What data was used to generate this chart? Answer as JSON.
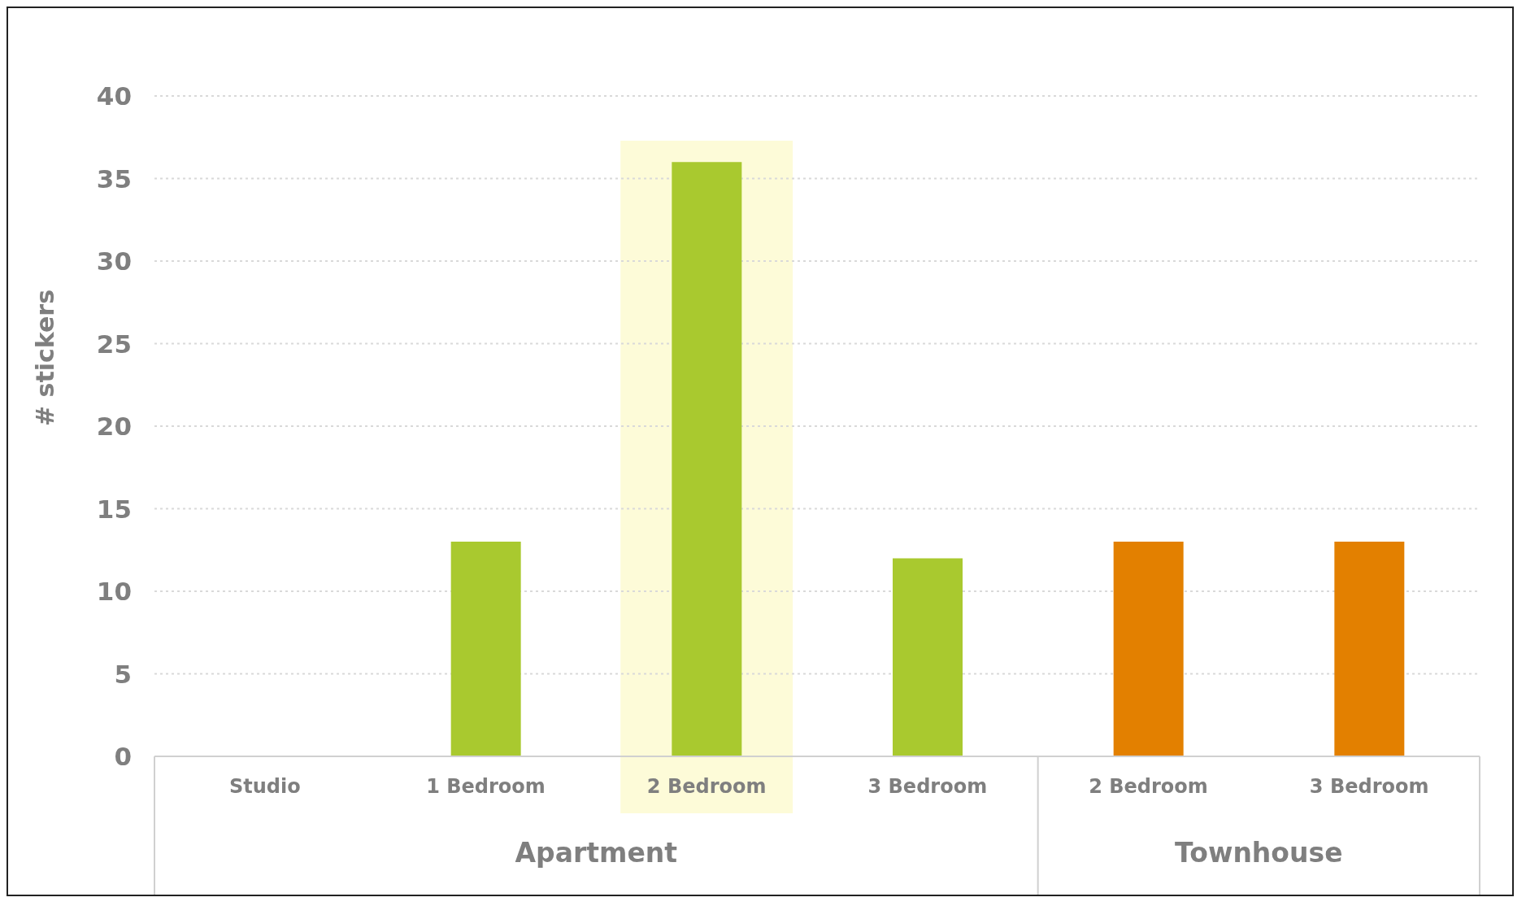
{
  "chart_data": {
    "type": "bar",
    "ylabel": "# stickers",
    "categories": [
      "Studio",
      "1 Bedroom",
      "2 Bedroom",
      "3 Bedroom",
      "2 Bedroom",
      "3 Bedroom"
    ],
    "values": [
      0,
      13,
      36,
      12,
      13,
      13
    ],
    "colors": [
      "#a9c92f",
      "#a9c92f",
      "#a9c92f",
      "#a9c92f",
      "#e38000",
      "#e38000"
    ],
    "ylim": [
      0,
      40
    ],
    "yticks": [
      0,
      5,
      10,
      15,
      20,
      25,
      30,
      35,
      40
    ],
    "grid": "y",
    "bands": [
      {
        "axis": "x",
        "from": "2 Bedroom",
        "to": "2 Bedroom",
        "color": "#fdfbd8"
      }
    ],
    "annotations": [
      "Apartment",
      "Townhouse"
    ]
  }
}
